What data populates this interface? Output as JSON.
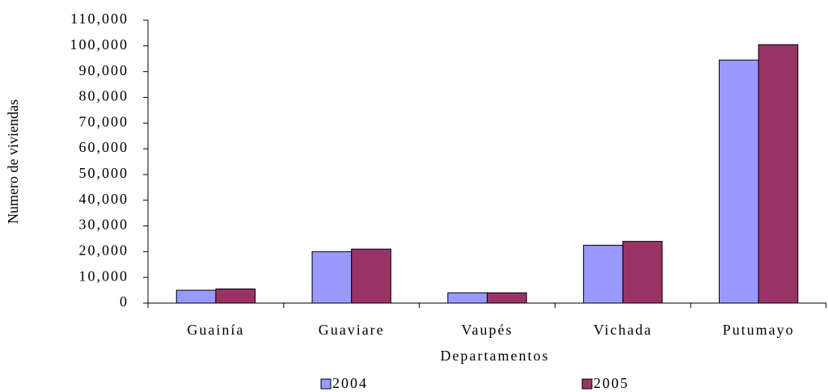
{
  "chart_data": {
    "type": "bar",
    "categories": [
      "Guainía",
      "Guaviare",
      "Vaupés",
      "Vichada",
      "Putumayo"
    ],
    "series": [
      {
        "name": "2004",
        "color": "#9999ff",
        "values": [
          5000,
          20000,
          4000,
          22500,
          94500
        ]
      },
      {
        "name": "2005",
        "color": "#993366",
        "values": [
          5500,
          21000,
          4000,
          24000,
          100500
        ]
      }
    ],
    "x_label": "Departamentos",
    "y_label": "Numero de viviendas",
    "ylim": [
      0,
      110000
    ],
    "yticks": [
      0,
      {
        "value": 10000,
        "label": "10,000"
      },
      {
        "value": 20000,
        "label": "20,000"
      },
      {
        "value": 30000,
        "label": "30,000"
      },
      {
        "value": 40000,
        "label": "40,000"
      },
      {
        "value": 50000,
        "label": "50,000"
      },
      {
        "value": 60000,
        "label": "60,000"
      },
      {
        "value": 70000,
        "label": "70,000"
      },
      {
        "value": 80000,
        "label": "80,000"
      },
      {
        "value": 90000,
        "label": "90,000"
      },
      {
        "value": 100000,
        "label": "100,000"
      },
      {
        "value": 110000,
        "label": "110,000"
      }
    ],
    "grid": false
  }
}
